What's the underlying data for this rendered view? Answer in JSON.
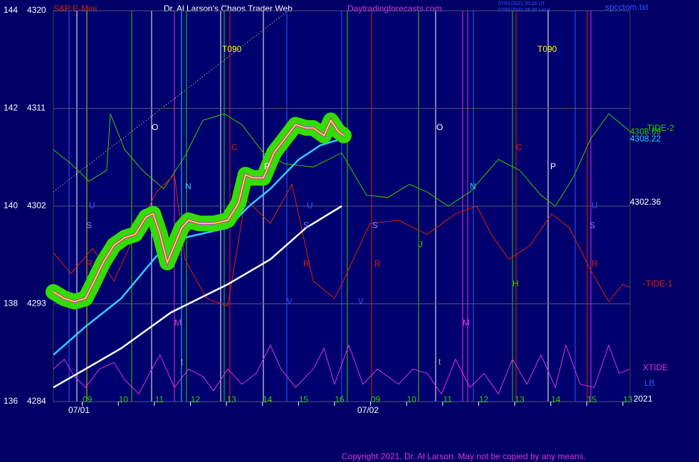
{
  "chart_data": {
    "type": "line",
    "title": "Dr. Al Larson's Chaos Trader Web",
    "instrument": "S&P E-Mini",
    "site": "Daytradingforecasts.com",
    "file": "spcctom.txt",
    "timestamps": [
      "07/01/2021 20:20 UT",
      "07/01/2021 18:20 Local"
    ],
    "copyright": "Copyright 2021, Dr. Al Larson. May not be copied by any means.",
    "ylim": [
      4284,
      4320
    ],
    "yticks": [
      4284,
      4293,
      4302,
      4311,
      4320
    ],
    "y2lim": [
      136,
      144
    ],
    "y2ticks": [
      136,
      138,
      140,
      142,
      144
    ],
    "xlim": [
      0,
      16
    ],
    "xticks": [
      {
        "value": 1,
        "label": "09"
      },
      {
        "value": 2,
        "label": "10"
      },
      {
        "value": 3,
        "label": "11"
      },
      {
        "value": 4,
        "label": "12"
      },
      {
        "value": 5,
        "label": "13"
      },
      {
        "value": 6,
        "label": "14"
      },
      {
        "value": 7,
        "label": "15"
      },
      {
        "value": 8,
        "label": "16"
      },
      {
        "value": 9,
        "label": "09"
      },
      {
        "value": 10,
        "label": "10"
      },
      {
        "value": 11,
        "label": "11"
      },
      {
        "value": 12,
        "label": "12"
      },
      {
        "value": 13,
        "label": "13"
      },
      {
        "value": 14,
        "label": "14"
      },
      {
        "value": 15,
        "label": "15"
      },
      {
        "value": 16,
        "label": "13"
      }
    ],
    "dates": [
      "07/01",
      "07/02"
    ],
    "year": "2021",
    "grid": true,
    "series": [
      {
        "name": "-TIDE-2",
        "color": "#33cc00",
        "x": [
          0,
          0.49,
          0.99,
          1.48,
          1.58,
          1.98,
          2.47,
          3.06,
          3.65,
          4.15,
          4.74,
          5.23,
          5.83,
          6.42,
          7.21,
          8.0,
          8.69,
          9.28,
          9.88,
          10.37,
          10.96,
          11.56,
          12.35,
          12.94,
          13.53,
          13.93,
          14.42,
          14.91,
          15.41,
          16
        ],
        "values": [
          4307.2,
          4305.9,
          4304.3,
          4305.3,
          4310.5,
          4307.2,
          4305.3,
          4303.6,
          4306.6,
          4309.9,
          4310.5,
          4309.5,
          4306.9,
          4305.9,
          4305.6,
          4306.9,
          4303.0,
          4302.8,
          4304.0,
          4303.3,
          4302.0,
          4303.3,
          4306.3,
          4305.3,
          4303.0,
          4302.0,
          4304.6,
          4308.2,
          4310.5,
          4308.9
        ]
      },
      {
        "name": "-TIDE-1",
        "color": "#dd2200",
        "x": [
          0,
          0.49,
          1.09,
          1.68,
          2.27,
          2.86,
          3.36,
          3.65,
          4.25,
          4.84,
          5.33,
          6.02,
          6.62,
          7.21,
          7.8,
          8.0,
          8.79,
          9.58,
          10.37,
          11.16,
          11.75,
          12.15,
          12.64,
          13.23,
          13.83,
          14.32,
          14.91,
          15.41,
          15.8,
          16
        ],
        "values": [
          4297.7,
          4295.8,
          4298.1,
          4295.1,
          4299.4,
          4303.3,
          4304.9,
          4297.1,
          4293.5,
          4292.8,
          4302.7,
          4300.4,
          4304.0,
          4295.1,
          4293.5,
          4294.8,
          4300.4,
          4300.7,
          4299.4,
          4301.3,
          4302.0,
          4299.4,
          4297.1,
          4298.4,
          4301.3,
          4300.0,
          4296.1,
          4293.2,
          4294.8,
          4294.5
        ]
      },
      {
        "name": "XTIDE",
        "color": "#dd33dd",
        "x": [
          0,
          0.3,
          0.59,
          0.89,
          1.28,
          1.68,
          1.98,
          2.37,
          2.67,
          2.96,
          3.36,
          3.75,
          4.15,
          4.44,
          4.84,
          5.23,
          5.63,
          6.02,
          6.32,
          6.72,
          7.21,
          7.51,
          7.8,
          8.2,
          8.59,
          8.99,
          9.58,
          9.98,
          10.37,
          10.77,
          11.16,
          11.56,
          11.95,
          12.35,
          12.74,
          13.14,
          13.53,
          13.93,
          14.22,
          14.62,
          15.01,
          15.41,
          15.7,
          16
        ],
        "values": [
          4287.0,
          4287.9,
          4286.3,
          4285.3,
          4287.0,
          4287.6,
          4286.0,
          4284.7,
          4286.6,
          4288.3,
          4285.3,
          4287.0,
          4286.3,
          4285.0,
          4287.0,
          4285.6,
          4286.6,
          4289.2,
          4287.0,
          4285.3,
          4287.0,
          4288.9,
          4285.6,
          4289.2,
          4285.6,
          4287.0,
          4285.6,
          4287.0,
          4286.6,
          4284.7,
          4287.9,
          4285.3,
          4286.6,
          4284.7,
          4287.9,
          4285.6,
          4288.3,
          4285.3,
          4289.2,
          4285.6,
          4285.3,
          4289.2,
          4286.6,
          4287.0
        ]
      },
      {
        "color": "#ffffff",
        "x": [
          0,
          0.89,
          1.88,
          3.26,
          4.84,
          6.02,
          7.01,
          8.0
        ],
        "values": [
          4285.3,
          4287.0,
          4288.9,
          4292.2,
          4294.8,
          4297.1,
          4300.0,
          4302.0
        ]
      },
      {
        "color": "#33ccff",
        "x": [
          0,
          0.89,
          1.88,
          2.86,
          3.65,
          4.44,
          4.84,
          5.43,
          6.02,
          6.81,
          7.41,
          8.0
        ],
        "values": [
          4288.3,
          4290.9,
          4293.5,
          4297.4,
          4299.1,
          4299.7,
          4300.0,
          4302.0,
          4303.6,
          4306.3,
          4307.6,
          4308.2
        ]
      },
      {
        "color": "#ffff00",
        "glow": "#33dd00",
        "inner": "#cc33cc",
        "x": [
          0,
          0.3,
          0.59,
          0.89,
          1.09,
          1.38,
          1.68,
          1.98,
          2.27,
          2.57,
          2.77,
          2.96,
          3.16,
          3.36,
          3.56,
          3.75,
          4.05,
          4.44,
          4.84,
          5.14,
          5.33,
          5.53,
          5.83,
          6.12,
          6.42,
          6.72,
          7.01,
          7.21,
          7.51,
          7.7,
          7.9,
          8.06
        ],
        "values": [
          4294.1,
          4293.5,
          4293.2,
          4293.5,
          4294.8,
          4296.8,
          4298.4,
          4299.1,
          4299.4,
          4301.0,
          4301.3,
          4299.4,
          4296.8,
          4298.4,
          4300.0,
          4300.7,
          4300.4,
          4300.4,
          4300.7,
          4302.3,
          4304.9,
          4304.6,
          4304.6,
          4306.9,
          4308.2,
          4309.5,
          4309.2,
          4309.2,
          4308.5,
          4309.9,
          4308.9,
          4308.5
        ]
      }
    ],
    "right_labels": [
      {
        "text": "-TIDE-2",
        "color": "#33cc00"
      },
      {
        "text": "4308.69",
        "color": "#33cc00"
      },
      {
        "text": "4308.22",
        "color": "#33ccff"
      },
      {
        "text": "4302.36",
        "color": "#ffffff"
      },
      {
        "text": "-TIDE-1",
        "color": "#dd2200"
      },
      {
        "text": "XTIDE",
        "color": "#dd33dd"
      },
      {
        "text": "LB",
        "color": "#3355ff"
      }
    ],
    "annotations": [
      {
        "text": "T090",
        "color": "#ffff00"
      },
      {
        "text": "O",
        "color": "#ffffff"
      },
      {
        "text": "C",
        "color": "#dd2200"
      },
      {
        "text": "P",
        "color": "#ffffff"
      },
      {
        "text": "N",
        "color": "#33ccff"
      },
      {
        "text": "U",
        "color": "#3355ff"
      },
      {
        "text": "S",
        "color": "#8888ff"
      },
      {
        "text": "R",
        "color": "#dd2200"
      },
      {
        "text": "M",
        "color": "#dd33dd"
      },
      {
        "text": "U",
        "color": "#3355ff"
      },
      {
        "text": "S",
        "color": "#8888ff"
      },
      {
        "text": "R",
        "color": "#dd2200"
      },
      {
        "text": "V",
        "color": "#3355ff"
      },
      {
        "text": "V",
        "color": "#3355ff"
      },
      {
        "text": "S",
        "color": "#8888ff"
      },
      {
        "text": "R",
        "color": "#dd2200"
      },
      {
        "text": "J",
        "color": "#33cc00"
      },
      {
        "text": "T090",
        "color": "#ffff00"
      },
      {
        "text": "O",
        "color": "#ffffff"
      },
      {
        "text": "C",
        "color": "#dd2200"
      },
      {
        "text": "P",
        "color": "#ffffff"
      },
      {
        "text": "N",
        "color": "#33ccff"
      },
      {
        "text": "H",
        "color": "#33cc00"
      },
      {
        "text": "M",
        "color": "#dd33dd"
      },
      {
        "text": "U",
        "color": "#3355ff"
      },
      {
        "text": "S",
        "color": "#8888ff"
      },
      {
        "text": "R",
        "color": "#dd2200"
      },
      {
        "text": "t",
        "color": "#aaaaaa"
      },
      {
        "text": "t",
        "color": "#aaaaaa"
      }
    ]
  }
}
